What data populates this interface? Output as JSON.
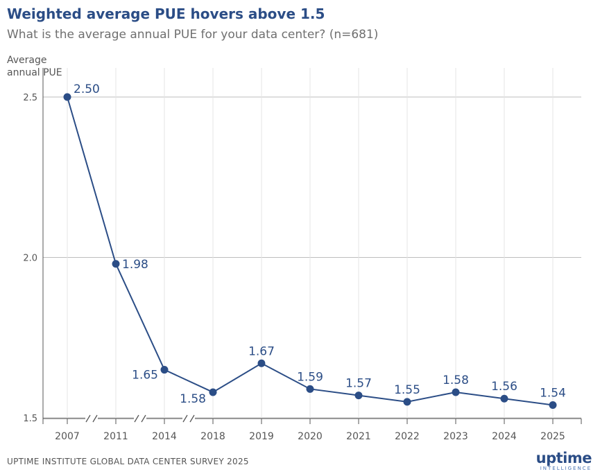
{
  "header": {
    "title": "Weighted average PUE hovers above 1.5",
    "subtitle": "What is the average annual PUE for your data center? (n=681)"
  },
  "chart_data": {
    "type": "line",
    "ylabel_line1": "Average",
    "ylabel_line2": "annual PUE",
    "xlabel": "",
    "categories": [
      "2007",
      "2011",
      "2014",
      "2018",
      "2019",
      "2020",
      "2021",
      "2022",
      "2023",
      "2024",
      "2025"
    ],
    "values": [
      2.5,
      1.98,
      1.65,
      1.58,
      1.67,
      1.59,
      1.57,
      1.55,
      1.58,
      1.56,
      1.54
    ],
    "value_labels": [
      "2.50",
      "1.98",
      "1.65",
      "1.58",
      "1.67",
      "1.59",
      "1.57",
      "1.55",
      "1.58",
      "1.56",
      "1.54"
    ],
    "yticks": [
      "1.5",
      "2.0",
      "2.5"
    ],
    "axis_breaks_after": [
      "2007",
      "2011",
      "2014"
    ],
    "color": "#2b4d86",
    "grid": true
  },
  "footer": {
    "source": "UPTIME INSTITUTE GLOBAL DATA CENTER SURVEY 2025"
  },
  "logo": {
    "main": "uptime",
    "sub": "INTELLIGENCE"
  }
}
